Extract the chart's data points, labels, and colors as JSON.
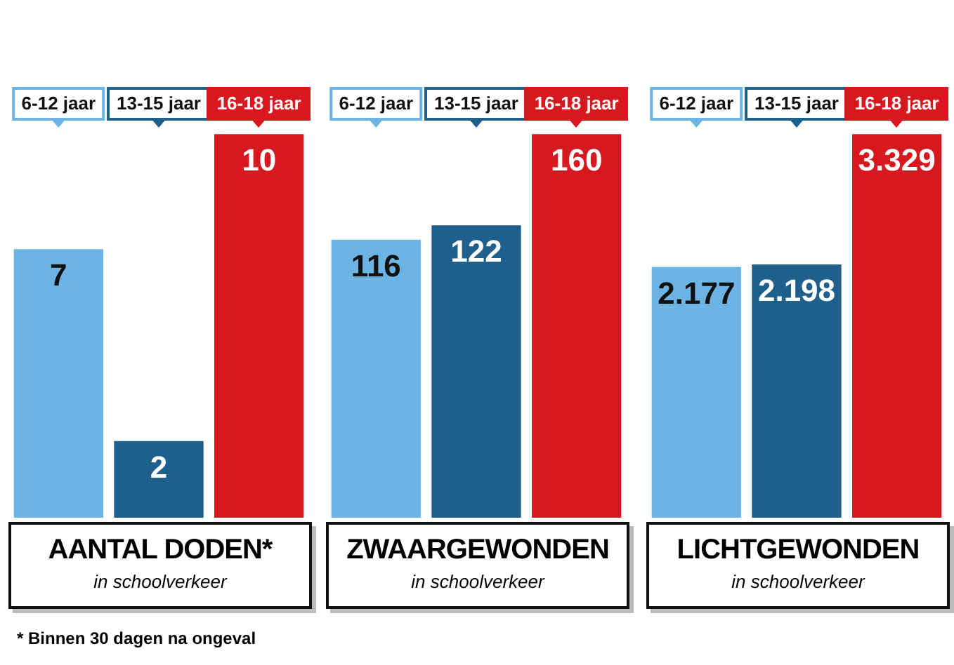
{
  "chart_data": [
    {
      "type": "bar",
      "title": "AANTAL DODEN*",
      "subtitle": "in schoolverkeer",
      "categories": [
        "6-12 jaar",
        "13-15 jaar",
        "16-18 jaar"
      ],
      "values": [
        7,
        2,
        10
      ],
      "value_labels": [
        "7",
        "2",
        "10"
      ],
      "colors": [
        "#6cb4e4",
        "#1f5f8b",
        "#d7191f"
      ],
      "tick_labels": false,
      "annotations": [
        "* Binnen 30 dagen na ongeval"
      ]
    },
    {
      "type": "bar",
      "title": "ZWAARGEWONDEN",
      "subtitle": "in schoolverkeer",
      "categories": [
        "6-12 jaar",
        "13-15 jaar",
        "16-18 jaar"
      ],
      "values": [
        116,
        122,
        160
      ],
      "value_labels": [
        "116",
        "122",
        "160"
      ],
      "colors": [
        "#6cb4e4",
        "#1f5f8b",
        "#d7191f"
      ],
      "tick_labels": false
    },
    {
      "type": "bar",
      "title": "LICHTGEWONDEN",
      "subtitle": "in schoolverkeer",
      "categories": [
        "6-12 jaar",
        "13-15 jaar",
        "16-18 jaar"
      ],
      "values": [
        2177,
        2198,
        3329
      ],
      "value_labels": [
        "2.177",
        "2.198",
        "3.329"
      ],
      "colors": [
        "#6cb4e4",
        "#1f5f8b",
        "#d7191f"
      ],
      "tick_labels": false
    }
  ]
}
